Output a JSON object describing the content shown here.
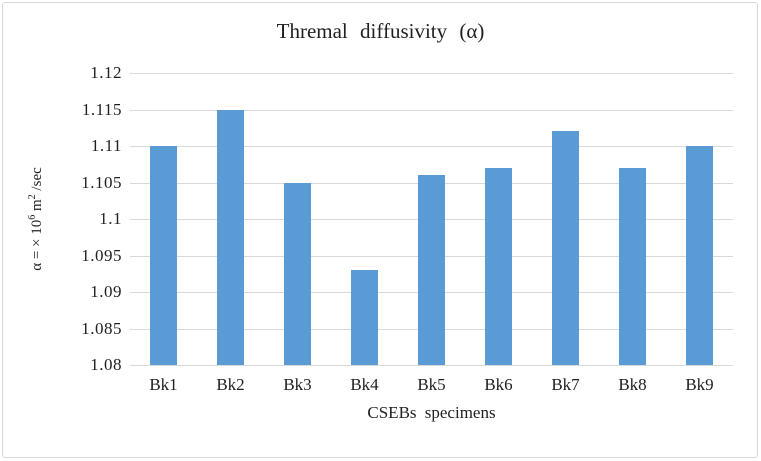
{
  "chart_data": {
    "type": "bar",
    "title": "Thremal  diffusivity  (α)",
    "categories": [
      "Bk1",
      "Bk2",
      "Bk3",
      "Bk4",
      "Bk5",
      "Bk6",
      "Bk7",
      "Bk8",
      "Bk9"
    ],
    "values": [
      1.11,
      1.115,
      1.105,
      1.093,
      1.106,
      1.107,
      1.112,
      1.107,
      1.11
    ],
    "xlabel": "CSEBs  specimens",
    "ylabel": "α = × 10⁶ m² /sec",
    "ylabel_parts": {
      "base1": "α = × 10",
      "sup1": "6",
      "base2": " m",
      "sup2": "2",
      "base3": " /sec"
    },
    "ylim": [
      1.08,
      1.12
    ],
    "ytick_step": 0.005,
    "yticks_top_to_bottom": [
      "1.12",
      "1.115",
      "1.11",
      "1.105",
      "1.1",
      "1.095",
      "1.09",
      "1.085",
      "1.08"
    ],
    "grid": true,
    "legend": "none",
    "colors": {
      "bar": "#5b9bd5",
      "gridline": "#d9d9d9",
      "text": "#1f1f1f",
      "frame_border": "#d9d9d9",
      "background": "#ffffff"
    }
  }
}
